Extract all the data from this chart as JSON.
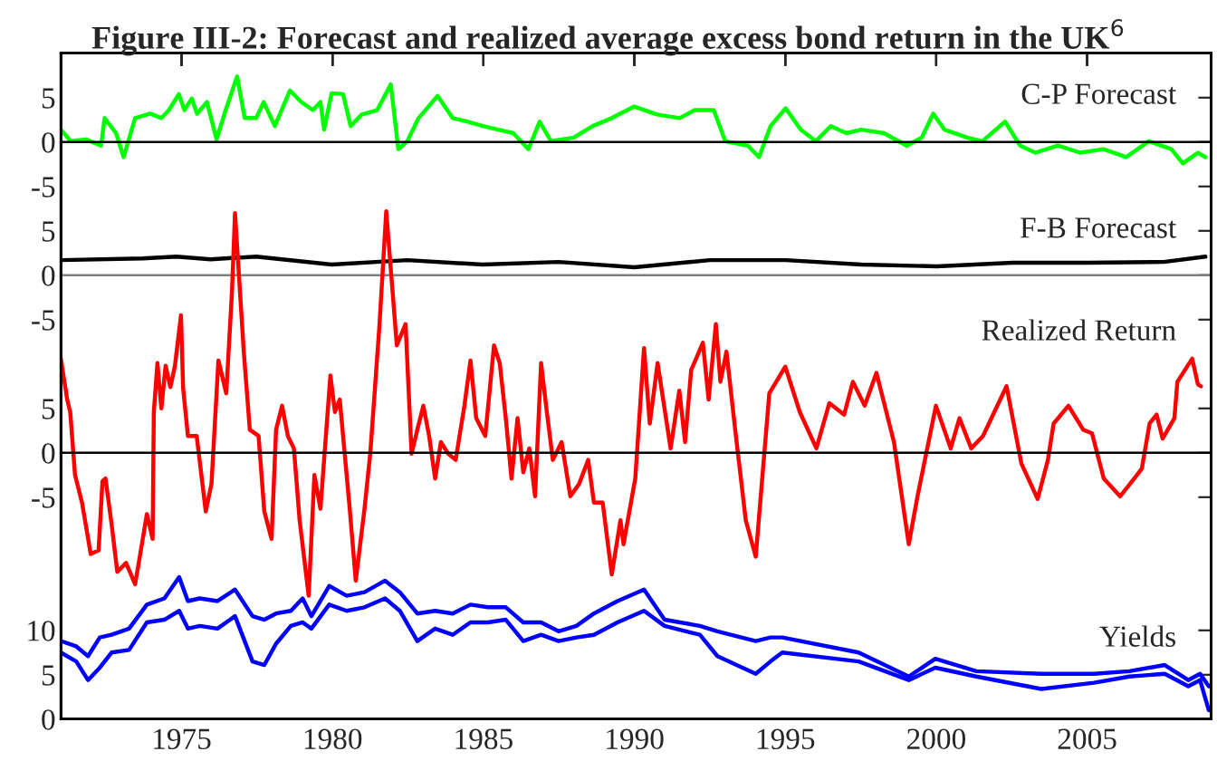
{
  "chart_data": [
    {
      "type": "line",
      "title": "Figure III-2: Forecast and realized average excess bond return in the UK$^{6}$",
      "xlim": [
        1971,
        2009.1
      ],
      "xticks": [
        1975,
        1980,
        1985,
        1990,
        1995,
        2000,
        2005
      ],
      "ylim": [
        -65,
        10
      ],
      "yticks": [
        -5,
        0,
        5
      ],
      "tick_labels": "y",
      "ref_lines": [
        {
          "axis": "y",
          "value": 0,
          "color": "#000000"
        }
      ],
      "series": [
        {
          "name": "C-P Forecast",
          "color": "#00ff00",
          "x": [
            1971.0,
            1971.33,
            1971.83,
            1972.33,
            1972.45,
            1972.83,
            1973.08,
            1973.46,
            1973.96,
            1974.33,
            1974.58,
            1974.91,
            1975.09,
            1975.34,
            1975.51,
            1975.84,
            1976.16,
            1976.46,
            1976.84,
            1977.09,
            1977.47,
            1977.72,
            1978.09,
            1978.59,
            1978.97,
            1979.35,
            1979.6,
            1979.72,
            1979.97,
            1980.35,
            1980.6,
            1980.97,
            1981.48,
            1981.93,
            1982.18,
            1982.48,
            1982.85,
            1983.48,
            1983.98,
            1984.48,
            1984.98,
            1985.49,
            1985.99,
            1986.49,
            1986.86,
            1987.24,
            1987.99,
            1988.62,
            1989.25,
            1990.0,
            1990.75,
            1991.5,
            1992.0,
            1992.63,
            1993.01,
            1993.76,
            1994.13,
            1994.51,
            1995.01,
            1995.51,
            1996.01,
            1996.51,
            1997.02,
            1997.52,
            1998.27,
            1999.02,
            1999.52,
            1999.9,
            2000.27,
            2001.03,
            2001.53,
            2002.28,
            2002.78,
            2003.28,
            2004.03,
            2004.78,
            2005.54,
            2006.29,
            2007.04,
            2007.79,
            2008.17,
            2008.67,
            2008.92
          ],
          "values": [
            1.4,
            0.1,
            0.3,
            -0.4,
            2.7,
            1.0,
            -1.7,
            2.7,
            3.2,
            2.7,
            3.6,
            5.4,
            3.6,
            4.9,
            3.2,
            4.5,
            0.3,
            3.6,
            7.4,
            2.7,
            2.7,
            4.5,
            1.8,
            5.8,
            4.5,
            3.6,
            4.5,
            1.4,
            5.5,
            5.4,
            1.8,
            3.1,
            3.6,
            6.5,
            -0.8,
            0.1,
            2.7,
            5.2,
            2.7,
            2.3,
            1.8,
            1.4,
            1.0,
            -0.8,
            2.3,
            0.1,
            0.5,
            1.8,
            2.7,
            4.0,
            3.1,
            2.7,
            3.6,
            3.6,
            0.1,
            -0.4,
            -1.7,
            1.8,
            3.8,
            1.4,
            0.1,
            1.8,
            1.0,
            1.4,
            1.0,
            -0.4,
            0.5,
            3.2,
            1.4,
            0.5,
            0.1,
            2.3,
            -0.4,
            -1.2,
            -0.4,
            -1.2,
            -0.8,
            -1.7,
            0.1,
            -0.8,
            -2.4,
            -1.2,
            -1.7
          ]
        }
      ]
    },
    {
      "type": "line",
      "xlim": [
        1971,
        2009.1
      ],
      "xticks": [
        1975,
        1980,
        1985,
        1990,
        1995,
        2000,
        2005
      ],
      "ylim": [
        -50,
        25
      ],
      "yticks": [
        -5,
        0,
        5
      ],
      "tick_labels": "y",
      "ref_lines": [
        {
          "axis": "y",
          "value": 0,
          "color": "#808080"
        }
      ],
      "series": [
        {
          "name": "F-B Forecast",
          "color": "#000000",
          "x": [
            1971.0,
            1973.71,
            1974.83,
            1975.96,
            1977.47,
            1979.97,
            1982.48,
            1984.98,
            1987.49,
            1990.0,
            1992.5,
            1995.01,
            1997.52,
            2000.02,
            2002.53,
            2005.04,
            2007.54,
            2008.92
          ],
          "values": [
            1.7,
            1.9,
            2.1,
            1.8,
            2.1,
            1.2,
            1.7,
            1.2,
            1.5,
            0.9,
            1.7,
            1.7,
            1.2,
            1.0,
            1.4,
            1.4,
            1.5,
            2.1
          ]
        }
      ]
    },
    {
      "type": "line",
      "xlim": [
        1971,
        2009.1
      ],
      "xticks": [
        1975,
        1980,
        1985,
        1990,
        1995,
        2000,
        2005
      ],
      "ylim": [
        -30,
        45
      ],
      "yticks": [
        -5,
        0,
        5
      ],
      "tick_labels": "y",
      "ref_lines": [
        {
          "axis": "y",
          "value": 0,
          "color": "#000000"
        }
      ],
      "series": [
        {
          "name": "Realized Return",
          "color": "#ff0000",
          "x": [
            1971.0,
            1971.21,
            1971.31,
            1971.47,
            1971.7,
            1971.99,
            1972.25,
            1972.38,
            1972.48,
            1972.68,
            1972.87,
            1973.16,
            1973.46,
            1973.65,
            1973.85,
            1974.04,
            1974.08,
            1974.2,
            1974.33,
            1974.47,
            1974.63,
            1974.78,
            1974.98,
            1975.05,
            1975.21,
            1975.5,
            1975.8,
            1975.99,
            1976.22,
            1976.48,
            1976.67,
            1976.77,
            1977.06,
            1977.26,
            1977.55,
            1977.74,
            1977.98,
            1978.13,
            1978.33,
            1978.52,
            1978.72,
            1978.91,
            1979.21,
            1979.4,
            1979.6,
            1979.93,
            1980.08,
            1980.24,
            1980.57,
            1980.77,
            1981.06,
            1981.25,
            1981.55,
            1981.78,
            1982.13,
            1982.42,
            1982.62,
            1982.81,
            1983.01,
            1983.2,
            1983.4,
            1983.59,
            1983.83,
            1984.08,
            1984.37,
            1984.57,
            1984.76,
            1985.06,
            1985.35,
            1985.54,
            1985.74,
            1985.93,
            1986.13,
            1986.32,
            1986.52,
            1986.71,
            1986.91,
            1987.1,
            1987.3,
            1987.59,
            1987.88,
            1988.17,
            1988.47,
            1988.66,
            1988.95,
            1989.25,
            1989.54,
            1989.64,
            1990.03,
            1990.32,
            1990.51,
            1990.77,
            1991.2,
            1991.49,
            1991.68,
            1991.88,
            1992.27,
            1992.46,
            1992.7,
            1992.85,
            1993.05,
            1993.34,
            1993.69,
            1994.02,
            1994.47,
            1995.0,
            1995.48,
            1996.03,
            1996.46,
            1996.95,
            1997.24,
            1997.63,
            1998.02,
            1998.6,
            1999.09,
            1999.38,
            1999.99,
            2000.48,
            2000.77,
            2001.16,
            2001.55,
            2002.33,
            2002.82,
            2003.36,
            2003.7,
            2003.89,
            2004.38,
            2004.87,
            2005.16,
            2005.55,
            2006.09,
            2006.42,
            2006.81,
            2007.07,
            2007.3,
            2007.5,
            2007.89,
            2007.99,
            2008.48,
            2008.67,
            2008.77
          ],
          "values": [
            10.6,
            6.0,
            4.6,
            -2.5,
            -5.6,
            -11.4,
            -11.0,
            -3.2,
            -2.9,
            -8.0,
            -13.4,
            -12.4,
            -14.8,
            -11.0,
            -6.9,
            -9.7,
            4.6,
            10.1,
            5.0,
            9.8,
            7.4,
            9.8,
            15.5,
            7.3,
            1.9,
            1.9,
            -6.6,
            -3.5,
            10.4,
            6.7,
            18.2,
            27.0,
            11.4,
            2.6,
            1.9,
            -6.6,
            -9.7,
            2.6,
            5.3,
            1.9,
            0.5,
            -7.6,
            -16.1,
            -2.5,
            -6.3,
            8.7,
            4.6,
            6.0,
            -6.3,
            -14.4,
            -6.3,
            -0.1,
            14.1,
            27.2,
            12.1,
            14.5,
            -0.1,
            2.6,
            5.3,
            1.9,
            -2.9,
            1.2,
            -0.1,
            -0.8,
            5.3,
            10.4,
            3.9,
            1.9,
            12.1,
            10.1,
            3.9,
            -2.9,
            3.9,
            -2.2,
            0.5,
            -4.9,
            10.1,
            4.6,
            -0.8,
            1.2,
            -4.9,
            -3.5,
            -0.8,
            -5.6,
            -5.6,
            -13.7,
            -7.6,
            -10.3,
            -2.9,
            11.8,
            3.3,
            10.1,
            0.5,
            7.0,
            1.2,
            9.3,
            12.4,
            6.0,
            14.5,
            8.0,
            11.4,
            2.6,
            -7.6,
            -11.7,
            6.7,
            9.7,
            4.6,
            0.5,
            5.6,
            4.3,
            8.0,
            5.3,
            9.0,
            1.2,
            -10.3,
            -4.9,
            5.3,
            0.5,
            3.9,
            0.5,
            1.9,
            7.5,
            -1.2,
            -5.2,
            -0.8,
            3.3,
            5.3,
            2.6,
            2.2,
            -2.9,
            -4.9,
            -3.5,
            -1.8,
            3.3,
            4.3,
            1.6,
            3.9,
            8.0,
            10.6,
            7.7,
            7.5
          ]
        }
      ]
    },
    {
      "type": "line",
      "xlim": [
        1971,
        2009.1
      ],
      "xticks": [
        1975,
        1980,
        1985,
        1990,
        1995,
        2000,
        2005
      ],
      "ylim": [
        0,
        75
      ],
      "yticks": [
        0,
        5,
        10
      ],
      "x": [
        1971.0,
        1971.51,
        1971.9,
        1972.29,
        1972.68,
        1973.26,
        1973.85,
        1974.43,
        1974.92,
        1975.21,
        1975.6,
        1976.19,
        1976.77,
        1977.35,
        1977.74,
        1978.13,
        1978.62,
        1979.01,
        1979.3,
        1979.89,
        1980.47,
        1981.06,
        1981.74,
        1982.23,
        1982.81,
        1983.4,
        1983.98,
        1984.57,
        1985.15,
        1985.74,
        1986.32,
        1986.91,
        1987.49,
        1988.08,
        1988.66,
        1989.44,
        1990.32,
        1991.0,
        1992.17,
        1992.75,
        1994.02,
        1994.51,
        1994.9,
        1997.43,
        1999.09,
        1999.97,
        2001.33,
        2003.48,
        2005.23,
        2006.4,
        2007.57,
        2008.35,
        2008.74,
        2009.03
      ],
      "annotations": [
        "Yields"
      ],
      "series": [
        {
          "color": "#0000ff",
          "values": [
            8.8,
            8.2,
            7.1,
            9.2,
            9.5,
            10.2,
            12.9,
            13.6,
            16.0,
            13.3,
            13.6,
            13.3,
            14.6,
            11.6,
            11.2,
            11.9,
            12.2,
            13.6,
            11.6,
            15.0,
            13.9,
            14.3,
            15.6,
            14.3,
            11.9,
            12.2,
            11.9,
            12.9,
            12.6,
            12.6,
            10.9,
            10.9,
            9.9,
            10.5,
            11.9,
            13.3,
            14.6,
            11.2,
            10.5,
            9.9,
            8.8,
            9.2,
            9.2,
            7.5,
            4.8,
            6.8,
            5.4,
            5.1,
            5.1,
            5.4,
            6.1,
            4.4,
            5.1,
            3.7
          ]
        },
        {
          "color": "#0000ff",
          "values": [
            7.5,
            6.5,
            4.4,
            5.8,
            7.5,
            7.8,
            10.9,
            11.2,
            12.2,
            10.2,
            10.5,
            10.2,
            11.6,
            6.5,
            6.1,
            8.5,
            10.5,
            10.9,
            10.2,
            12.9,
            12.2,
            12.6,
            13.6,
            12.2,
            8.8,
            10.2,
            9.5,
            10.9,
            10.9,
            11.2,
            8.8,
            9.5,
            8.8,
            9.2,
            9.5,
            10.9,
            12.2,
            10.5,
            9.5,
            7.1,
            5.1,
            6.5,
            7.5,
            6.5,
            4.4,
            5.8,
            4.8,
            3.4,
            4.1,
            4.8,
            5.1,
            3.7,
            4.4,
            1.0
          ]
        }
      ]
    }
  ]
}
